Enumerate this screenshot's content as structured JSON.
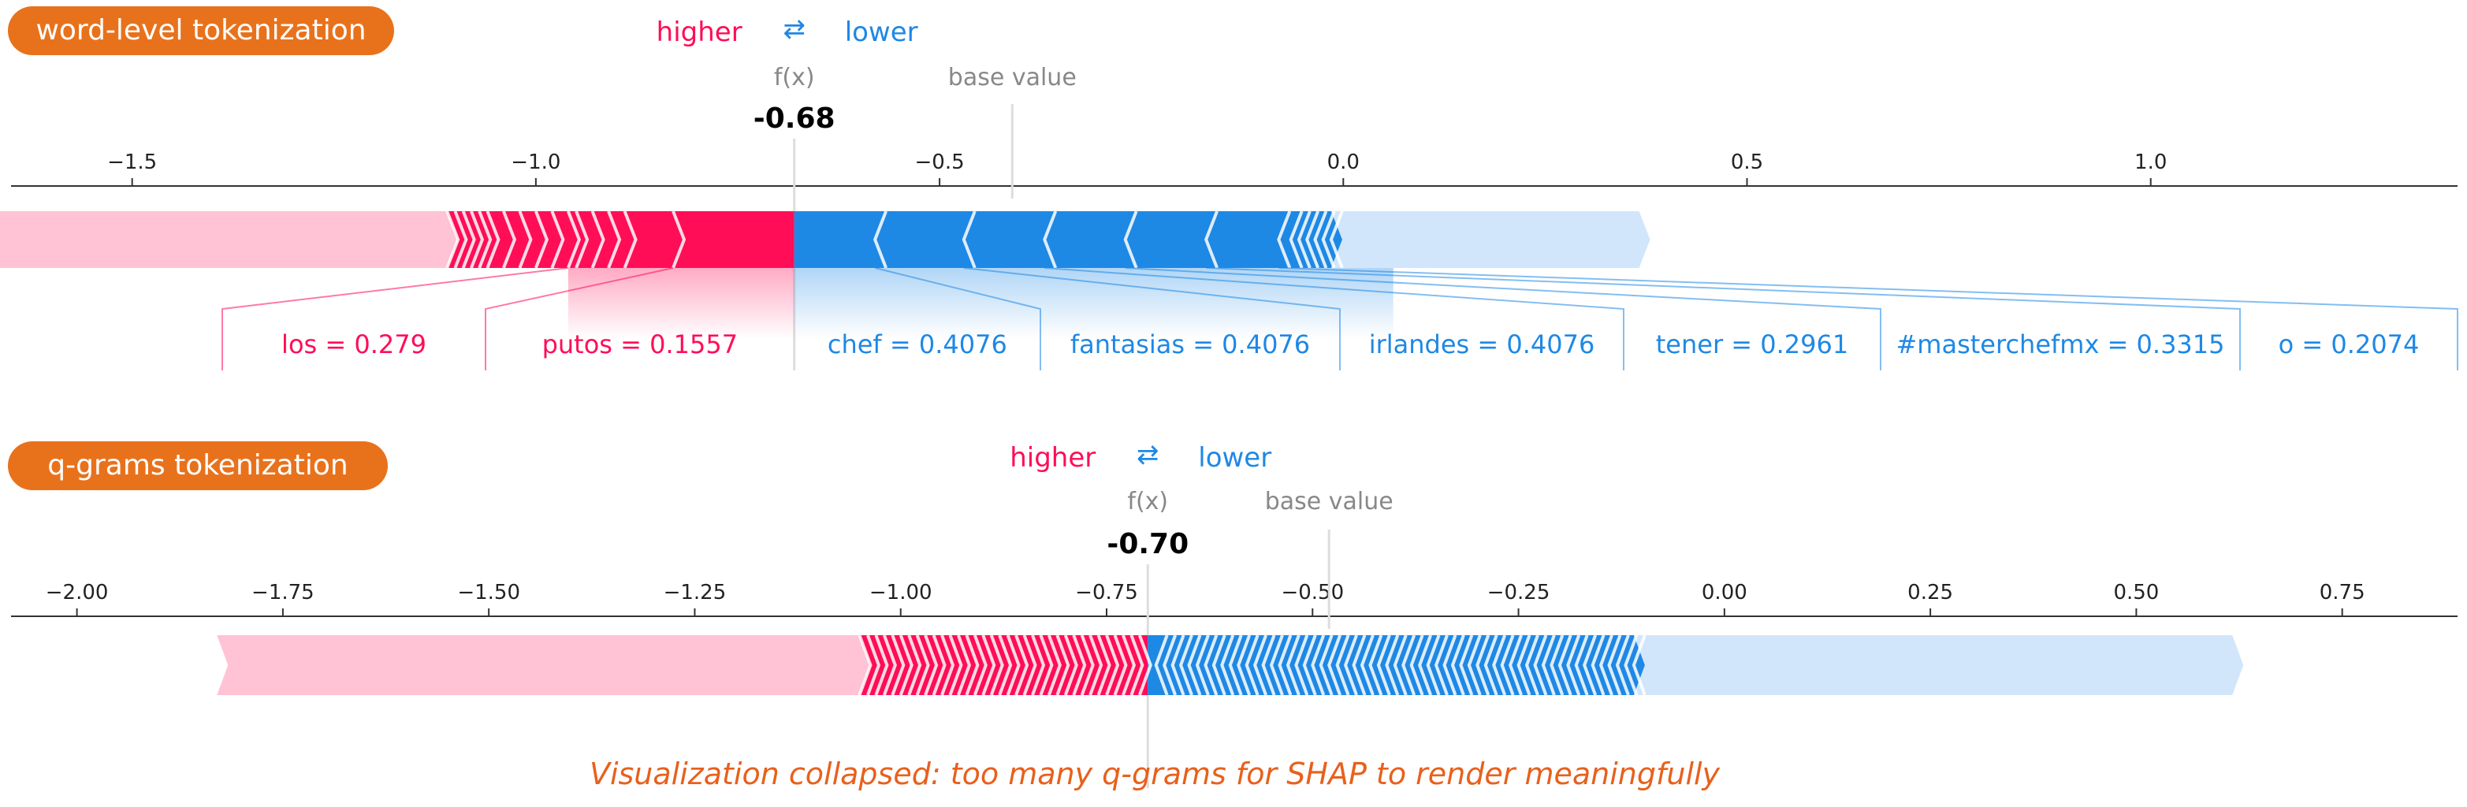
{
  "panels": [
    {
      "badge": "word-level tokenization",
      "colors": {
        "pos": "#ff0d57",
        "neg": "#1e88e5",
        "pos_light": "#ffc3d5",
        "neg_light": "#d1e6fa"
      },
      "legend": {
        "higher": "higher",
        "arrows": "⇄",
        "lower": "lower",
        "fx_label": "f(x)",
        "base_label": "base value"
      },
      "chart_data": {
        "type": "force",
        "fx": -0.68,
        "fx_text": "-0.68",
        "base_value": -0.41,
        "xlim": [
          -1.65,
          1.38
        ],
        "ticks": [
          -1.5,
          -1.0,
          -0.5,
          0.0,
          0.5,
          1.0
        ],
        "tick_labels": [
          "−1.5",
          "−1.0",
          "−0.5",
          "0.0",
          "0.5",
          "1.0"
        ],
        "grid": false,
        "band_range": [
          -1.9,
          0.38
        ],
        "pos_segments": [
          -1.11,
          -1.1,
          -1.09,
          -1.08,
          -1.07,
          -1.06,
          -1.04,
          -1.02,
          -1.0,
          -0.98,
          -0.96,
          -0.95,
          -0.93,
          -0.91,
          -0.89,
          -0.83
        ],
        "neg_segments": [
          -0.58,
          -0.47,
          -0.37,
          -0.27,
          -0.17,
          -0.08,
          -0.065,
          -0.055,
          -0.045,
          -0.035,
          -0.025,
          -0.015
        ],
        "pos_features": [
          {
            "label": "los = 0.279",
            "start": -0.96
          },
          {
            "label": "putos = 0.1557",
            "start": -0.83
          }
        ],
        "neg_features": [
          {
            "label": "chef = 0.4076",
            "start": -0.58
          },
          {
            "label": "fantasias = 0.4076",
            "start": -0.47
          },
          {
            "label": "irlandes = 0.4076",
            "start": -0.37
          },
          {
            "label": "tener = 0.2961",
            "start": -0.27
          },
          {
            "label": "#masterchefmx = 0.3315",
            "start": -0.17
          },
          {
            "label": "o = 0.2074",
            "start": -0.08
          }
        ]
      }
    },
    {
      "badge": "q-grams tokenization",
      "colors": {
        "pos": "#ff0d57",
        "neg": "#1e88e5",
        "pos_light": "#ffc3d5",
        "neg_light": "#d1e6fa"
      },
      "legend": {
        "higher": "higher",
        "arrows": "⇄",
        "lower": "lower",
        "fx_label": "f(x)",
        "base_label": "base value"
      },
      "chart_data": {
        "type": "force",
        "fx": -0.7,
        "fx_text": "-0.70",
        "base_value": -0.48,
        "xlim": [
          -2.08,
          0.89
        ],
        "ticks": [
          -2.0,
          -1.75,
          -1.5,
          -1.25,
          -1.0,
          -0.75,
          -0.5,
          -0.25,
          0.0,
          0.25,
          0.5,
          0.75
        ],
        "tick_labels": [
          "−2.00",
          "−1.75",
          "−1.50",
          "−1.25",
          "−1.00",
          "−0.75",
          "−0.50",
          "−0.25",
          "0.00",
          "0.25",
          "0.50",
          "0.75"
        ],
        "grid": false,
        "band_range": [
          -1.83,
          0.63
        ],
        "pos_segments": [
          -1.05,
          -1.04,
          -1.03,
          -1.02,
          -1.01,
          -1.0,
          -0.99,
          -0.98,
          -0.97,
          -0.96,
          -0.95,
          -0.94,
          -0.93,
          -0.92,
          -0.91,
          -0.9,
          -0.89,
          -0.88,
          -0.87,
          -0.86,
          -0.85,
          -0.84,
          -0.83,
          -0.82,
          -0.81,
          -0.8,
          -0.79,
          -0.78,
          -0.77,
          -0.76,
          -0.75,
          -0.74,
          -0.73,
          -0.72,
          -0.71
        ],
        "neg_segments": [
          -0.69,
          -0.68,
          -0.67,
          -0.66,
          -0.65,
          -0.64,
          -0.63,
          -0.62,
          -0.61,
          -0.6,
          -0.59,
          -0.58,
          -0.57,
          -0.56,
          -0.55,
          -0.54,
          -0.53,
          -0.52,
          -0.51,
          -0.5,
          -0.49,
          -0.48,
          -0.47,
          -0.46,
          -0.45,
          -0.44,
          -0.43,
          -0.42,
          -0.41,
          -0.4,
          -0.39,
          -0.38,
          -0.37,
          -0.36,
          -0.35,
          -0.34,
          -0.33,
          -0.32,
          -0.31,
          -0.3,
          -0.29,
          -0.28,
          -0.27,
          -0.26,
          -0.25,
          -0.24,
          -0.23,
          -0.22,
          -0.21,
          -0.2,
          -0.19,
          -0.18,
          -0.17,
          -0.16,
          -0.15,
          -0.14,
          -0.13,
          -0.12,
          -0.11
        ],
        "pos_features": [],
        "neg_features": []
      }
    }
  ],
  "caption": "Visualization collapsed: too many q-grams for SHAP to render meaningfully"
}
